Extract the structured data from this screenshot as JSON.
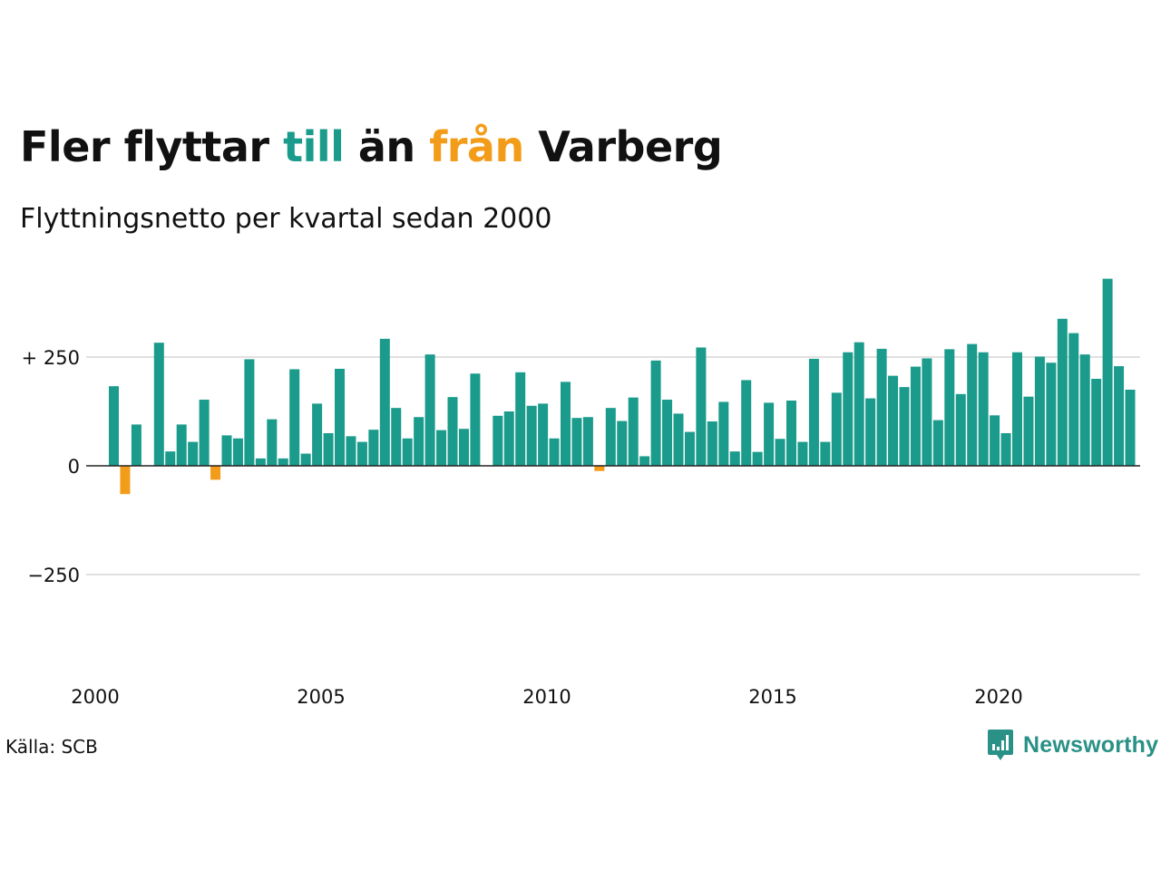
{
  "title": {
    "part1": "Fler flyttar ",
    "part2": "till",
    "part3": " än ",
    "part4": "från",
    "part5": " Varberg"
  },
  "subtitle": "Flyttningsnetto per kvartal sedan 2000",
  "source": "Källa: SCB",
  "logo": {
    "text": "Newsworthy",
    "icon": "newsworthy-chat-bars-icon"
  },
  "colors": {
    "positive": "#1a9b8b",
    "negative": "#f39c1a",
    "grid": "#e0e0e0",
    "logo": "#2a9187"
  },
  "chart_data": {
    "type": "bar",
    "xlabel": "",
    "ylabel": "",
    "ylim": [
      -420,
      430
    ],
    "y_ticks": [
      {
        "value": 250,
        "label": "+ 250"
      },
      {
        "value": 0,
        "label": "0"
      },
      {
        "value": -250,
        "label": "−250"
      }
    ],
    "x_ticks": [
      "2000",
      "2005",
      "2010",
      "2015",
      "2020"
    ],
    "grid": true,
    "x_start_year": 2000,
    "values": [
      183,
      -65,
      95,
      null,
      283,
      33,
      95,
      55,
      152,
      -32,
      70,
      63,
      245,
      17,
      107,
      17,
      222,
      28,
      143,
      75,
      223,
      68,
      55,
      83,
      292,
      133,
      63,
      112,
      256,
      82,
      158,
      85,
      212,
      null,
      115,
      125,
      215,
      138,
      143,
      63,
      193,
      110,
      112,
      -12,
      133,
      103,
      157,
      22,
      242,
      152,
      120,
      78,
      272,
      102,
      147,
      33,
      197,
      32,
      145,
      62,
      150,
      55,
      246,
      55,
      168,
      261,
      284,
      155,
      269,
      207,
      181,
      228,
      247,
      105,
      268,
      165,
      280,
      261,
      116,
      75,
      261,
      159,
      251,
      237,
      338,
      305,
      256,
      200,
      430,
      229,
      175
    ]
  }
}
